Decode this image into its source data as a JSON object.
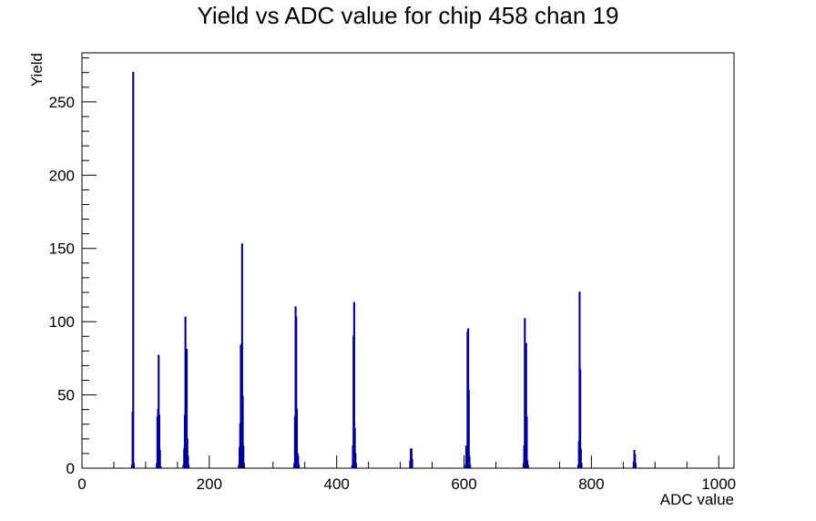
{
  "chart_data": {
    "type": "histogram",
    "title": "Yield vs ADC value for chip 458 chan 19",
    "xlabel": "ADC value",
    "ylabel": "Yield",
    "xlim": [
      0,
      1024
    ],
    "ylim": [
      0,
      283.5
    ],
    "x_ticks": [
      0,
      200,
      400,
      600,
      800,
      1000
    ],
    "y_ticks": [
      0,
      50,
      100,
      150,
      200,
      250
    ],
    "grid": false,
    "line_color": "#000099",
    "bins": [
      {
        "x": 78,
        "y": 2
      },
      {
        "x": 79,
        "y": 38
      },
      {
        "x": 80,
        "y": 270
      },
      {
        "x": 81,
        "y": 3
      },
      {
        "x": 117,
        "y": 3
      },
      {
        "x": 118,
        "y": 35
      },
      {
        "x": 119,
        "y": 40
      },
      {
        "x": 120,
        "y": 77
      },
      {
        "x": 121,
        "y": 36
      },
      {
        "x": 122,
        "y": 12
      },
      {
        "x": 123,
        "y": 1
      },
      {
        "x": 159,
        "y": 2
      },
      {
        "x": 160,
        "y": 13
      },
      {
        "x": 161,
        "y": 36
      },
      {
        "x": 162,
        "y": 103
      },
      {
        "x": 163,
        "y": 58
      },
      {
        "x": 164,
        "y": 81
      },
      {
        "x": 165,
        "y": 20
      },
      {
        "x": 166,
        "y": 8
      },
      {
        "x": 167,
        "y": 2
      },
      {
        "x": 246,
        "y": 2
      },
      {
        "x": 247,
        "y": 14
      },
      {
        "x": 248,
        "y": 30
      },
      {
        "x": 249,
        "y": 84
      },
      {
        "x": 250,
        "y": 63
      },
      {
        "x": 251,
        "y": 153
      },
      {
        "x": 252,
        "y": 49
      },
      {
        "x": 253,
        "y": 15
      },
      {
        "x": 254,
        "y": 3
      },
      {
        "x": 333,
        "y": 3
      },
      {
        "x": 334,
        "y": 35
      },
      {
        "x": 335,
        "y": 110
      },
      {
        "x": 336,
        "y": 103
      },
      {
        "x": 337,
        "y": 40
      },
      {
        "x": 338,
        "y": 10
      },
      {
        "x": 339,
        "y": 8
      },
      {
        "x": 340,
        "y": 2
      },
      {
        "x": 424,
        "y": 2
      },
      {
        "x": 425,
        "y": 15
      },
      {
        "x": 426,
        "y": 90
      },
      {
        "x": 427,
        "y": 113
      },
      {
        "x": 428,
        "y": 27
      },
      {
        "x": 429,
        "y": 10
      },
      {
        "x": 430,
        "y": 3
      },
      {
        "x": 515,
        "y": 5
      },
      {
        "x": 516,
        "y": 13
      },
      {
        "x": 517,
        "y": 13
      },
      {
        "x": 518,
        "y": 6
      },
      {
        "x": 602,
        "y": 2
      },
      {
        "x": 603,
        "y": 15
      },
      {
        "x": 604,
        "y": 5
      },
      {
        "x": 605,
        "y": 93
      },
      {
        "x": 606,
        "y": 95
      },
      {
        "x": 607,
        "y": 53
      },
      {
        "x": 608,
        "y": 8
      },
      {
        "x": 609,
        "y": 2
      },
      {
        "x": 693,
        "y": 3
      },
      {
        "x": 694,
        "y": 15
      },
      {
        "x": 695,
        "y": 102
      },
      {
        "x": 696,
        "y": 84
      },
      {
        "x": 697,
        "y": 85
      },
      {
        "x": 698,
        "y": 35
      },
      {
        "x": 699,
        "y": 5
      },
      {
        "x": 700,
        "y": 2
      },
      {
        "x": 779,
        "y": 2
      },
      {
        "x": 780,
        "y": 18
      },
      {
        "x": 781,
        "y": 120
      },
      {
        "x": 782,
        "y": 67
      },
      {
        "x": 783,
        "y": 13
      },
      {
        "x": 784,
        "y": 3
      },
      {
        "x": 866,
        "y": 4
      },
      {
        "x": 867,
        "y": 12
      },
      {
        "x": 868,
        "y": 9
      },
      {
        "x": 869,
        "y": 3
      }
    ]
  }
}
